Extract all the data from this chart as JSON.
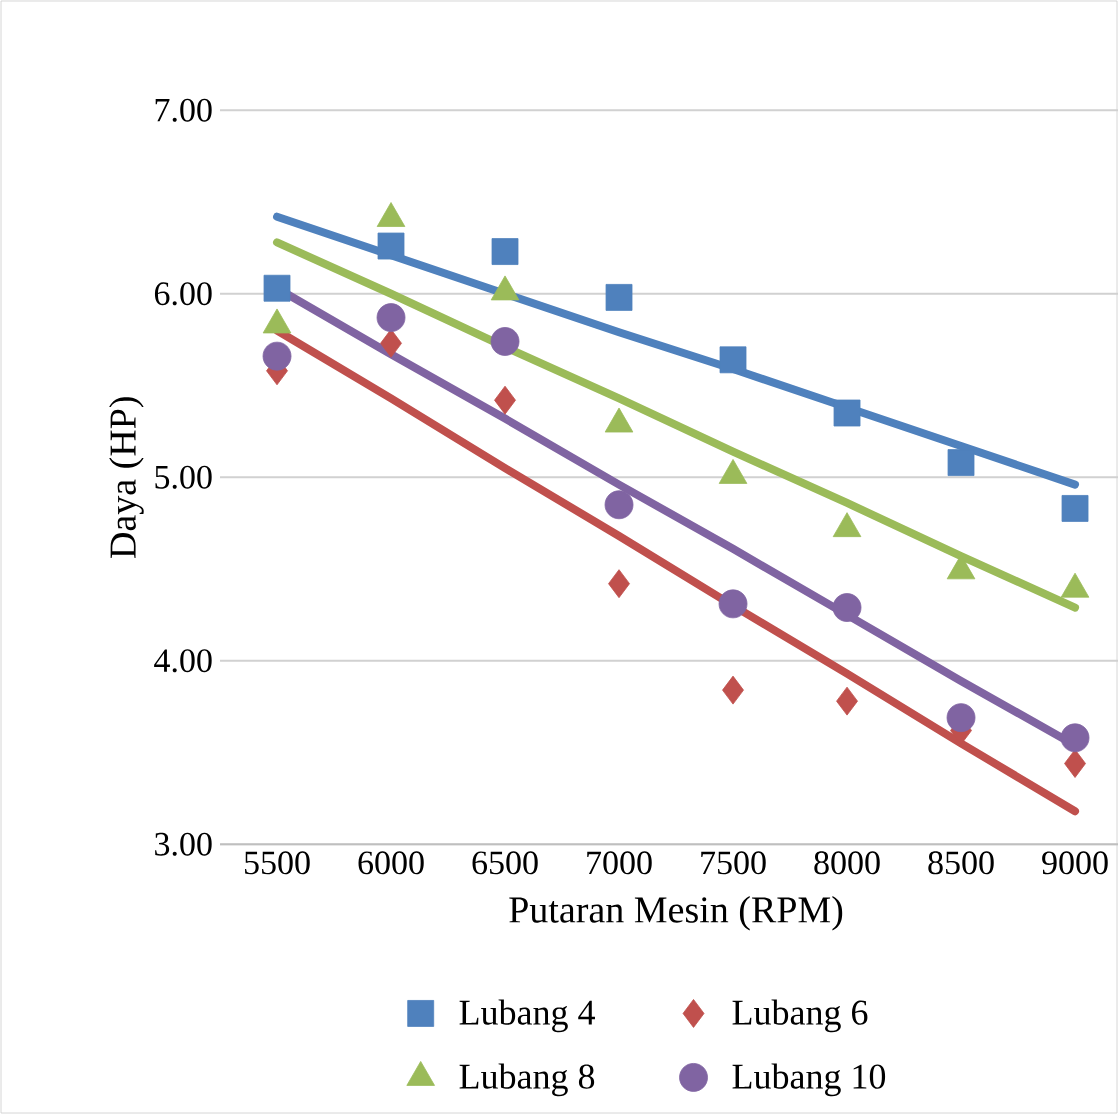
{
  "chart_data": {
    "type": "scatter",
    "xlabel": "Putaran Mesin (RPM)",
    "ylabel": "Daya (HP)",
    "x": [
      5500,
      6000,
      6500,
      7000,
      7500,
      8000,
      8500,
      9000
    ],
    "xlim": [
      5250,
      9250
    ],
    "xticks": [
      5500,
      6000,
      6500,
      7000,
      7500,
      8000,
      8500,
      9000
    ],
    "ylim": [
      3,
      7
    ],
    "yticks": [
      {
        "value": 3,
        "label": "3.00"
      },
      {
        "value": 4,
        "label": "4.00"
      },
      {
        "value": 5,
        "label": "5.00"
      },
      {
        "value": 6,
        "label": "6.00"
      },
      {
        "value": 7,
        "label": "7.00"
      }
    ],
    "grid": "y",
    "legend": "bottom",
    "series": [
      {
        "name": "Lubang 4",
        "color": "#4f81bd",
        "marker": "square",
        "values": [
          6.03,
          6.26,
          6.23,
          5.98,
          5.64,
          5.35,
          5.08,
          4.83
        ]
      },
      {
        "name": "Lubang 6",
        "color": "#c0504d",
        "marker": "diamond",
        "values": [
          5.58,
          5.73,
          5.42,
          4.42,
          3.84,
          3.78,
          3.62,
          3.44
        ]
      },
      {
        "name": "Lubang 8",
        "color": "#9bbb59",
        "marker": "triangle",
        "values": [
          5.83,
          6.41,
          6.01,
          5.29,
          5.01,
          4.72,
          4.49,
          4.39
        ]
      },
      {
        "name": "Lubang 10",
        "color": "#8064a2",
        "marker": "circle",
        "values": [
          5.66,
          5.87,
          5.74,
          4.85,
          4.31,
          4.29,
          3.69,
          3.58
        ]
      },
      {
        "type": "line",
        "color": "#4f81bd",
        "marker": "none",
        "values": [
          6.42,
          6.21,
          6.0,
          5.79,
          5.59,
          5.38,
          5.17,
          4.96
        ]
      },
      {
        "type": "line",
        "color": "#9bbb59",
        "marker": "none",
        "values": [
          6.28,
          6.0,
          5.71,
          5.43,
          5.14,
          4.86,
          4.57,
          4.29
        ]
      },
      {
        "type": "line",
        "color": "#8064a2",
        "marker": "none",
        "values": [
          6.03,
          5.67,
          5.32,
          4.96,
          4.61,
          4.25,
          3.89,
          3.54
        ]
      },
      {
        "type": "line",
        "color": "#c0504d",
        "marker": "none",
        "values": [
          5.8,
          5.43,
          5.05,
          4.68,
          4.3,
          3.93,
          3.55,
          3.18
        ]
      }
    ]
  }
}
